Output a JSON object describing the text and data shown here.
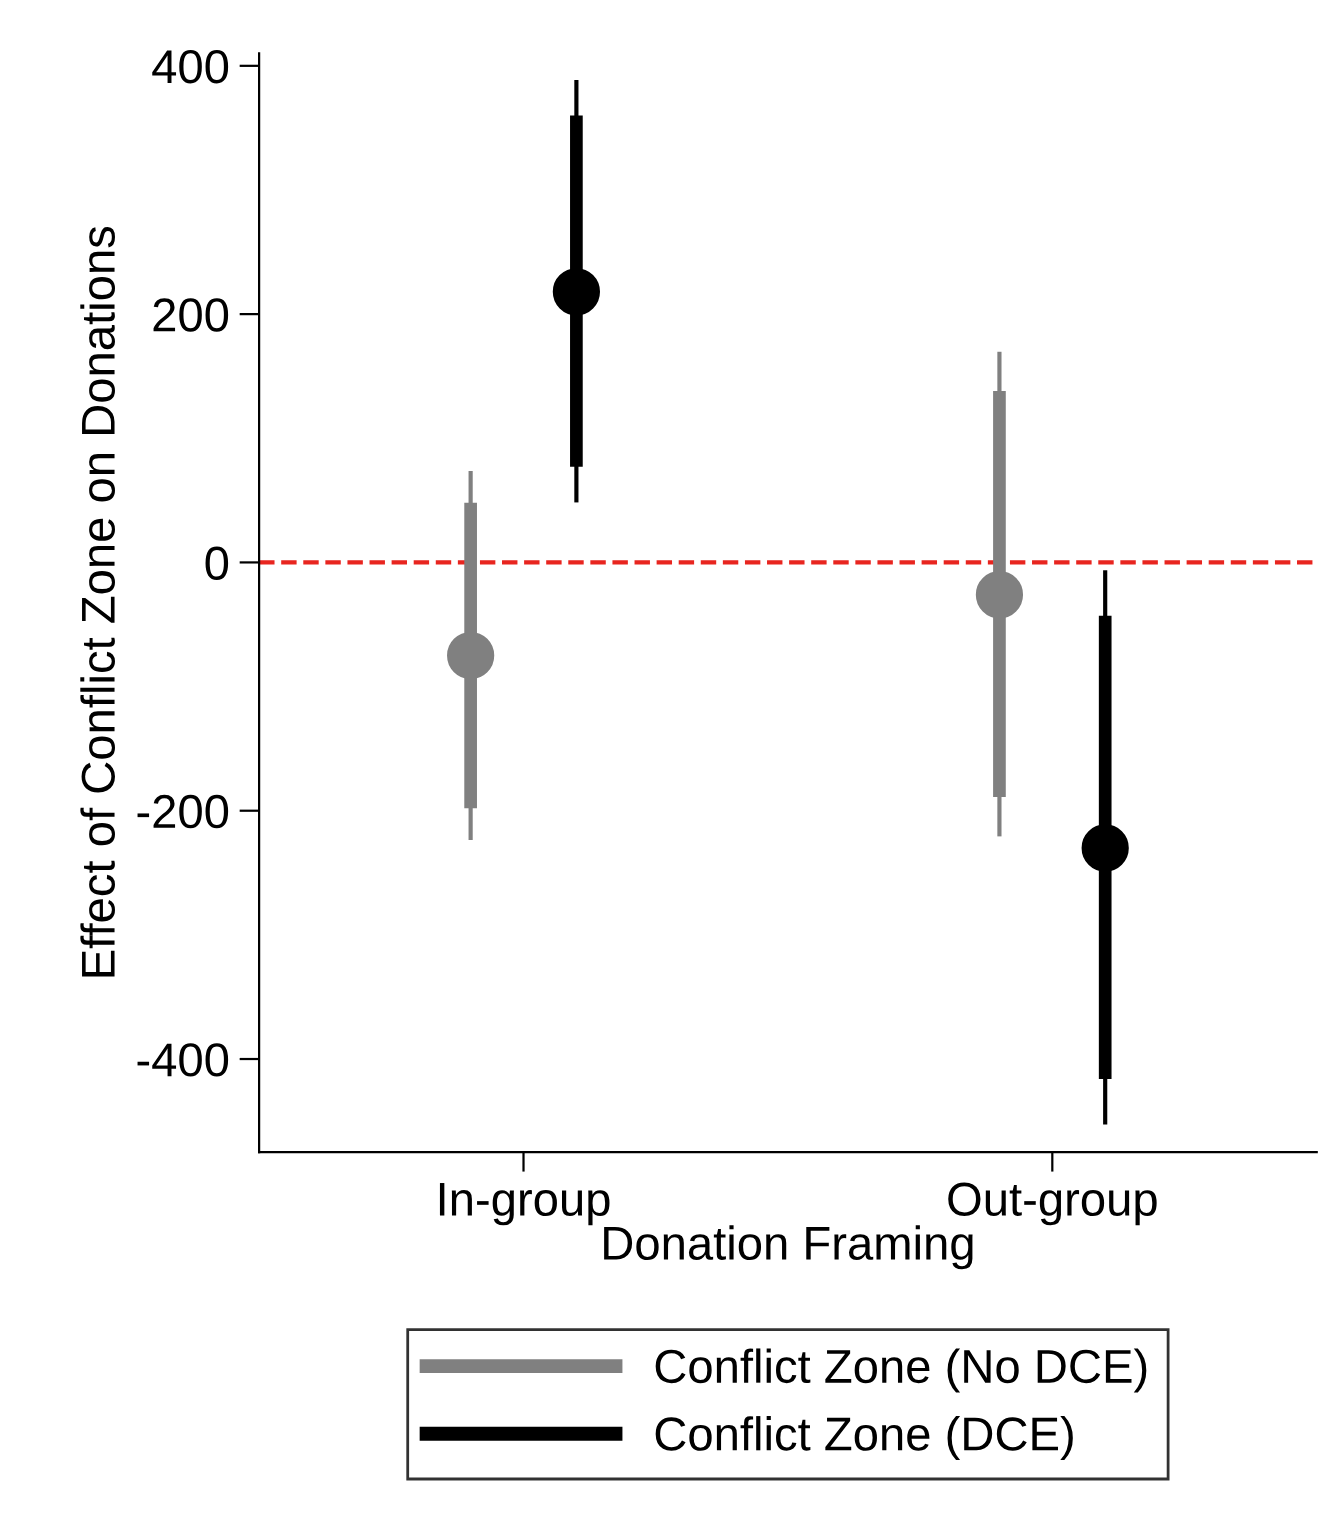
{
  "chart_data": {
    "type": "box",
    "xlabel": "Donation Framing",
    "ylabel": "Effect of Conflict Zone on Donations",
    "categories": [
      "In-group",
      "Out-group"
    ],
    "series": [
      {
        "name": "Conflict Zone (No DCE)",
        "color": "#808080",
        "boxes": [
          {
            "low": -222,
            "q1": -198,
            "median": -75,
            "q3": 48,
            "high": 72,
            "mean": -75
          },
          {
            "low": -219,
            "q1": -189,
            "median": -26,
            "q3": 138,
            "high": 168,
            "mean": -26
          }
        ]
      },
      {
        "name": "Conflict Zone (DCE)",
        "color": "#000000",
        "boxes": [
          {
            "low": 50,
            "q1": 77,
            "median": 218,
            "q3": 360,
            "high": 387,
            "mean": 218
          },
          {
            "low": -451,
            "q1": -416,
            "median": -230,
            "q3": -43,
            "high": -8,
            "mean": -230
          }
        ]
      }
    ],
    "ylim": [
      -475,
      410
    ],
    "yticks": [
      -400,
      -200,
      0,
      200,
      400
    ],
    "ref_lines": [
      {
        "axis": "y",
        "value": 0,
        "color": "#e8251f",
        "line_style": "dashed"
      }
    ],
    "marker": "circle",
    "legend": "bottom",
    "grid": false
  }
}
